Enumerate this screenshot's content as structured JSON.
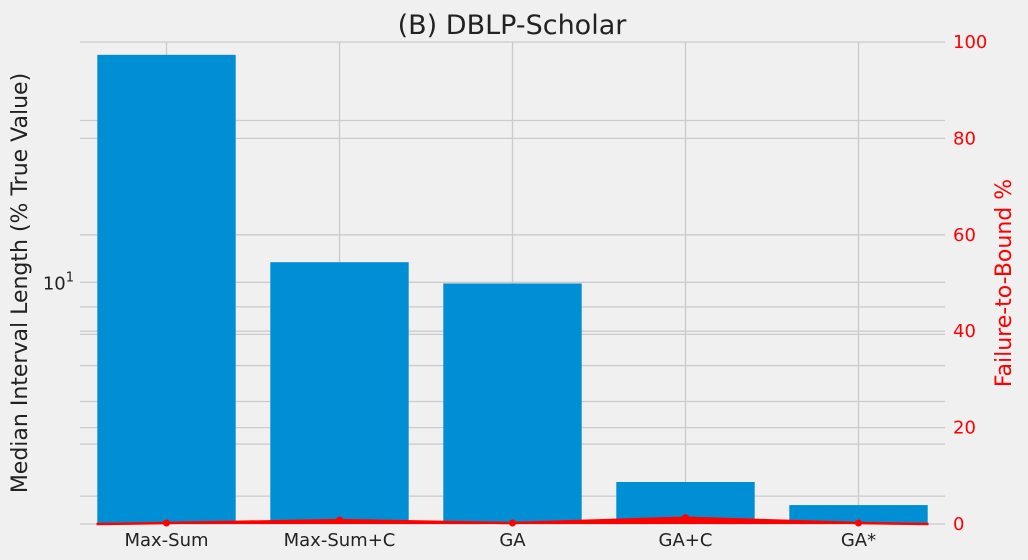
{
  "chart_data": {
    "type": "bar",
    "title": "(B) DBLP-Scholar",
    "categories": [
      "Max-Sum",
      "Max-Sum+C",
      "GA",
      "GA+C",
      "GA*"
    ],
    "left_axis": {
      "label": "Median Interval Length (% True Value)",
      "scale": "log",
      "ylim": [
        3.55,
        28
      ],
      "tick_labels": [
        {
          "value": 10,
          "base": "10",
          "exp": "1"
        }
      ]
    },
    "right_axis": {
      "label": "Failure-to-Bound %",
      "ylim": [
        0,
        100
      ],
      "ticks": [
        0,
        20,
        40,
        60,
        80,
        100
      ]
    },
    "series": [
      {
        "axis": "left",
        "kind": "bar",
        "values": [
          26.5,
          10.9,
          9.95,
          4.25,
          3.85
        ]
      },
      {
        "axis": "right",
        "kind": "line",
        "values": [
          0.2,
          0.8,
          0.2,
          1.3,
          0.2
        ]
      }
    ],
    "grid": true,
    "colors": {
      "bar": "#008fd5",
      "line": "#ff0000",
      "background": "#f0f0f0",
      "grid": "#cbcbcb"
    }
  }
}
